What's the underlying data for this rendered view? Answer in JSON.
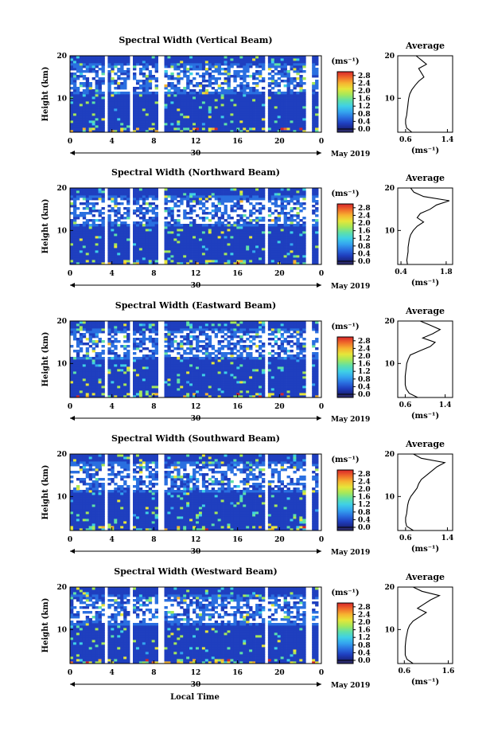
{
  "figure": {
    "xlabel": "Local Time",
    "ylabel": "Height (km)",
    "date_label": "May 2019",
    "day_label": "30",
    "colorbar_unit": "(ms⁻¹)",
    "colorbar_ticks": [
      "0.0",
      "0.4",
      "0.8",
      "1.2",
      "1.6",
      "2.0",
      "2.4",
      "2.8"
    ],
    "x_ticks": [
      "0",
      "4",
      "8",
      "12",
      "16",
      "20",
      "0"
    ],
    "y_ticks": [
      "10",
      "20"
    ],
    "avg_title": "Average",
    "avg_xlabel": "(ms⁻¹)",
    "colormap": [
      "#1a237e",
      "#1f3fbf",
      "#2a6fe0",
      "#34a5ef",
      "#3fd0e6",
      "#5fe0a8",
      "#a6e85a",
      "#e6e63a",
      "#f7b430",
      "#f06a2a",
      "#d8262a"
    ]
  },
  "chart_data": [
    {
      "type": "heatmap",
      "title": "Spectral Width (Vertical Beam)",
      "xlabel": "",
      "ylabel": "Height (km)",
      "xlim": [
        0,
        24
      ],
      "ylim": [
        2,
        20
      ],
      "zlim": [
        0.0,
        3.0
      ],
      "profile": {
        "type": "line",
        "title": "Average",
        "xlabel": "(ms⁻¹)",
        "x_ticks": [
          "0.6",
          "1.4"
        ],
        "xlim": [
          0.45,
          1.5
        ],
        "ylim": [
          2,
          20
        ],
        "height": [
          2,
          3,
          4,
          5,
          6,
          7,
          8,
          9,
          10,
          11,
          12,
          13,
          14,
          15,
          16,
          17,
          18,
          19,
          20
        ],
        "value": [
          0.72,
          0.62,
          0.6,
          0.6,
          0.62,
          0.63,
          0.64,
          0.65,
          0.66,
          0.68,
          0.72,
          0.78,
          0.85,
          0.95,
          0.9,
          0.85,
          1.0,
          0.9,
          0.8
        ]
      }
    },
    {
      "type": "heatmap",
      "title": "Spectral Width (Northward Beam)",
      "xlabel": "",
      "ylabel": "Height (km)",
      "xlim": [
        0,
        24
      ],
      "ylim": [
        2,
        20
      ],
      "zlim": [
        0.0,
        3.0
      ],
      "profile": {
        "type": "line",
        "title": "Average",
        "xlabel": "(ms⁻¹)",
        "x_ticks": [
          "0.4",
          "1.8"
        ],
        "xlim": [
          0.3,
          2.0
        ],
        "ylim": [
          2,
          20
        ],
        "height": [
          2,
          3,
          4,
          5,
          6,
          7,
          8,
          9,
          10,
          11,
          12,
          13,
          14,
          15,
          16,
          17,
          18,
          19,
          20
        ],
        "value": [
          0.6,
          0.58,
          0.6,
          0.62,
          0.62,
          0.64,
          0.66,
          0.7,
          0.78,
          0.9,
          1.1,
          0.9,
          1.0,
          1.3,
          1.5,
          1.9,
          1.1,
          0.8,
          0.7
        ]
      }
    },
    {
      "type": "heatmap",
      "title": "Spectral Width (Eastward Beam)",
      "xlabel": "",
      "ylabel": "Height (km)",
      "xlim": [
        0,
        24
      ],
      "ylim": [
        2,
        20
      ],
      "zlim": [
        0.0,
        3.0
      ],
      "profile": {
        "type": "line",
        "title": "Average",
        "xlabel": "(ms⁻¹)",
        "x_ticks": [
          "0.6",
          "1.4"
        ],
        "xlim": [
          0.45,
          1.55
        ],
        "ylim": [
          2,
          20
        ],
        "height": [
          2,
          3,
          4,
          5,
          6,
          7,
          8,
          9,
          10,
          11,
          12,
          13,
          14,
          15,
          16,
          17,
          18,
          19,
          20
        ],
        "value": [
          0.85,
          0.68,
          0.62,
          0.6,
          0.6,
          0.6,
          0.61,
          0.62,
          0.63,
          0.66,
          0.7,
          0.9,
          1.1,
          1.2,
          0.95,
          1.15,
          1.3,
          1.1,
          0.9
        ]
      }
    },
    {
      "type": "heatmap",
      "title": "Spectral Width (Southward Beam)",
      "xlabel": "",
      "ylabel": "Height (km)",
      "xlim": [
        0,
        24
      ],
      "ylim": [
        2,
        20
      ],
      "zlim": [
        0.0,
        3.0
      ],
      "profile": {
        "type": "line",
        "title": "Average",
        "xlabel": "(ms⁻¹)",
        "x_ticks": [
          "0.6",
          "1.4"
        ],
        "xlim": [
          0.45,
          1.5
        ],
        "ylim": [
          2,
          20
        ],
        "height": [
          2,
          3,
          4,
          5,
          6,
          7,
          8,
          9,
          10,
          11,
          12,
          13,
          14,
          15,
          16,
          17,
          18,
          19,
          20
        ],
        "value": [
          0.75,
          0.62,
          0.6,
          0.6,
          0.62,
          0.63,
          0.64,
          0.66,
          0.7,
          0.76,
          0.82,
          0.85,
          0.9,
          1.0,
          1.1,
          1.2,
          1.35,
          0.9,
          0.75
        ]
      }
    },
    {
      "type": "heatmap",
      "title": "Spectral Width (Westward Beam)",
      "xlabel": "Local Time",
      "ylabel": "Height (km)",
      "xlim": [
        0,
        24
      ],
      "ylim": [
        2,
        20
      ],
      "zlim": [
        0.0,
        3.0
      ],
      "profile": {
        "type": "line",
        "title": "Average",
        "xlabel": "(ms⁻¹)",
        "x_ticks": [
          "0.6",
          "1.6"
        ],
        "xlim": [
          0.45,
          1.7
        ],
        "ylim": [
          2,
          20
        ],
        "height": [
          2,
          3,
          4,
          5,
          6,
          7,
          8,
          9,
          10,
          11,
          12,
          13,
          14,
          15,
          16,
          17,
          18,
          19,
          20
        ],
        "value": [
          0.8,
          0.66,
          0.62,
          0.62,
          0.62,
          0.63,
          0.64,
          0.66,
          0.68,
          0.72,
          0.8,
          0.95,
          1.1,
          0.9,
          1.05,
          1.2,
          1.4,
          1.0,
          0.8
        ]
      }
    }
  ]
}
